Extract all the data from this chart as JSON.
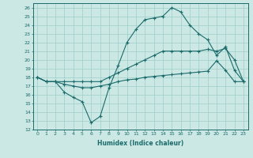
{
  "xlabel": "Humidex (Indice chaleur)",
  "xlim": [
    -0.5,
    23.5
  ],
  "ylim": [
    12,
    26.5
  ],
  "xticks": [
    0,
    1,
    2,
    3,
    4,
    5,
    6,
    7,
    8,
    9,
    10,
    11,
    12,
    13,
    14,
    15,
    16,
    17,
    18,
    19,
    20,
    21,
    22,
    23
  ],
  "yticks": [
    12,
    13,
    14,
    15,
    16,
    17,
    18,
    19,
    20,
    21,
    22,
    23,
    24,
    25,
    26
  ],
  "bg_color": "#cce8e4",
  "grid_color": "#9ecec8",
  "line_color": "#1a6b6b",
  "line1_x": [
    0,
    1,
    2,
    3,
    4,
    5,
    6,
    7,
    8,
    9,
    10,
    11,
    12,
    13,
    14,
    15,
    16,
    17,
    18,
    19,
    20,
    21,
    22,
    23
  ],
  "line1_y": [
    18.0,
    17.5,
    17.5,
    17.5,
    17.5,
    17.5,
    17.5,
    17.5,
    18.0,
    18.5,
    19.0,
    19.5,
    20.0,
    20.5,
    21.0,
    21.0,
    21.0,
    21.0,
    21.0,
    21.2,
    21.0,
    21.3,
    20.0,
    17.5
  ],
  "line2_x": [
    0,
    1,
    2,
    3,
    4,
    5,
    6,
    7,
    8,
    9,
    10,
    11,
    12,
    13,
    14,
    15,
    16,
    17,
    18,
    19,
    20,
    21,
    22,
    23
  ],
  "line2_y": [
    18.0,
    17.5,
    17.5,
    17.2,
    17.0,
    16.8,
    16.8,
    17.0,
    17.2,
    17.5,
    17.7,
    17.8,
    18.0,
    18.1,
    18.2,
    18.3,
    18.4,
    18.5,
    18.6,
    18.7,
    19.9,
    18.8,
    17.5,
    17.5
  ],
  "line3_x": [
    0,
    1,
    2,
    3,
    4,
    5,
    6,
    7,
    8,
    9,
    10,
    11,
    12,
    13,
    14,
    15,
    16,
    17,
    18,
    19,
    20,
    21,
    22,
    23
  ],
  "line3_y": [
    18.0,
    17.5,
    17.5,
    16.3,
    15.7,
    15.2,
    12.8,
    13.5,
    16.8,
    19.3,
    22.0,
    23.5,
    24.6,
    24.8,
    25.0,
    26.0,
    25.5,
    24.0,
    23.0,
    22.3,
    20.5,
    21.5,
    18.8,
    17.5
  ]
}
